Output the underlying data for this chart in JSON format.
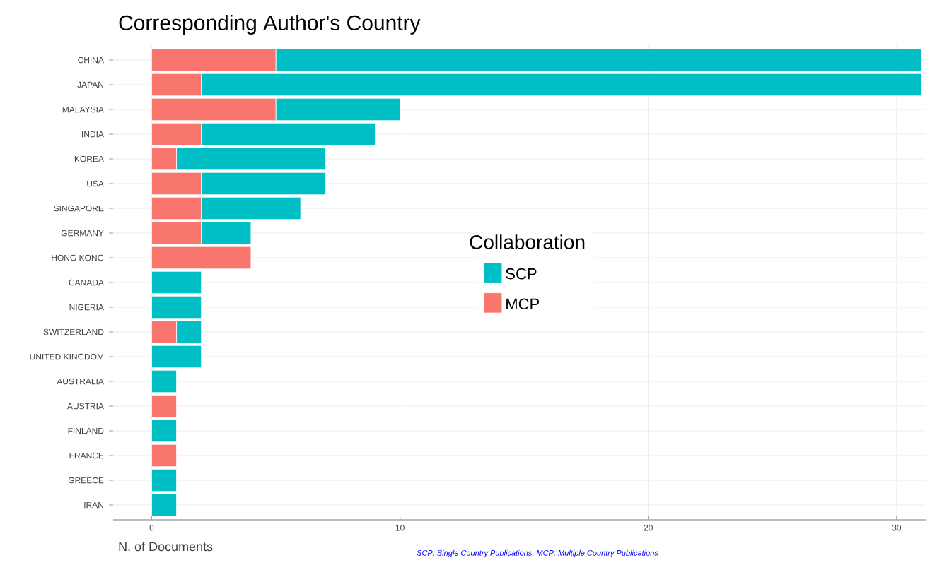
{
  "chart_data": {
    "type": "bar",
    "orientation": "horizontal",
    "stacked": true,
    "title": "Corresponding Author's Country",
    "xlabel": "N. of Documents",
    "legend_title": "Collaboration",
    "legend": "right",
    "annotations": [
      "SCP: Single Country Publications, MCP: Multiple Country Publications"
    ],
    "categories": [
      "CHINA",
      "JAPAN",
      "MALAYSIA",
      "INDIA",
      "KOREA",
      "USA",
      "SINGAPORE",
      "GERMANY",
      "HONG KONG",
      "CANADA",
      "NIGERIA",
      "SWITZERLAND",
      "UNITED KINGDOM",
      "AUSTRALIA",
      "AUSTRIA",
      "FINLAND",
      "FRANCE",
      "GREECE",
      "IRAN"
    ],
    "series": [
      {
        "name": "MCP",
        "color": "#f8766d",
        "values": [
          5,
          2,
          5,
          2,
          1,
          2,
          2,
          2,
          4,
          0,
          0,
          1,
          0,
          0,
          1,
          0,
          1,
          0,
          0
        ]
      },
      {
        "name": "SCP",
        "color": "#00bfc4",
        "values": [
          26,
          29,
          5,
          7,
          6,
          5,
          4,
          2,
          0,
          2,
          2,
          1,
          2,
          1,
          0,
          1,
          0,
          1,
          1
        ]
      }
    ],
    "xlim": [
      -1.55,
      31.2
    ],
    "xticks": [
      0,
      10,
      20,
      30
    ],
    "grid": true
  }
}
